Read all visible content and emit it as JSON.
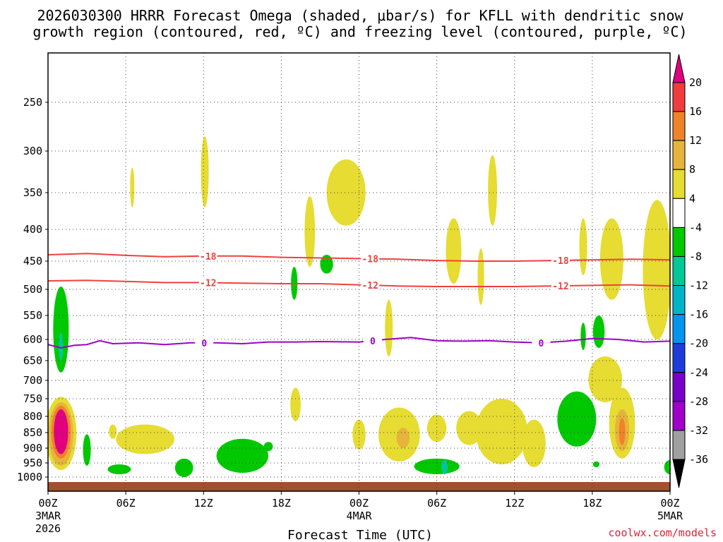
{
  "chart_data": {
    "type": "heatmap",
    "title_line1": "2026030300 HRRR Forecast Omega (shaded, μbar/s) for KFLL with dendritic snow",
    "title_line2": "growth region (contoured, red, ºC) and freezing level (contoured, purple, ºC)",
    "xlabel": "Forecast Time (UTC)",
    "credit": "coolwx.com/models",
    "x_range_hours": [
      0,
      48
    ],
    "x_ticks": [
      {
        "hour": 0,
        "label": "00Z",
        "sub1": "3MAR",
        "sub2": "2026"
      },
      {
        "hour": 6,
        "label": "06Z"
      },
      {
        "hour": 12,
        "label": "12Z"
      },
      {
        "hour": 18,
        "label": "18Z"
      },
      {
        "hour": 24,
        "label": "00Z",
        "sub1": "4MAR"
      },
      {
        "hour": 30,
        "label": "06Z"
      },
      {
        "hour": 36,
        "label": "12Z"
      },
      {
        "hour": 42,
        "label": "18Z"
      },
      {
        "hour": 48,
        "label": "00Z",
        "sub1": "5MAR"
      }
    ],
    "y_ticks_hpa": [
      250,
      300,
      350,
      400,
      450,
      500,
      550,
      600,
      650,
      700,
      750,
      800,
      850,
      900,
      950,
      1000
    ],
    "y_range_hpa": [
      1045,
      205
    ],
    "colorbar": {
      "labels": [
        "20",
        "16",
        "12",
        "8",
        "4",
        "-4",
        "-8",
        "-12",
        "-16",
        "-20",
        "-24",
        "-28",
        "-32",
        "-36"
      ],
      "colors": [
        "#e0007f",
        "#f03c3c",
        "#f08228",
        "#e6b43c",
        "#e6dc32",
        "#ffffff",
        "#00c800",
        "#00c896",
        "#00b4c8",
        "#0096f0",
        "#1e3cdc",
        "#7800c8",
        "#a000c8",
        "#a0a0a0",
        "#000000"
      ]
    },
    "contours": [
      {
        "name": "dgz-18",
        "label": "-18",
        "color": "#f04040",
        "points": [
          [
            0,
            440
          ],
          [
            3,
            438
          ],
          [
            6,
            441
          ],
          [
            9,
            443
          ],
          [
            12,
            442
          ],
          [
            15,
            442
          ],
          [
            18,
            444
          ],
          [
            21,
            445
          ],
          [
            24,
            446
          ],
          [
            27,
            447
          ],
          [
            30,
            449
          ],
          [
            33,
            450
          ],
          [
            36,
            450
          ],
          [
            39,
            449
          ],
          [
            42,
            448
          ],
          [
            45,
            447
          ],
          [
            48,
            448
          ]
        ],
        "label_hours": [
          12.3,
          24.8,
          39.5
        ]
      },
      {
        "name": "dgz-12",
        "label": "-12",
        "color": "#f04040",
        "points": [
          [
            0,
            485
          ],
          [
            3,
            484
          ],
          [
            6,
            486
          ],
          [
            9,
            488
          ],
          [
            12,
            488
          ],
          [
            15,
            489
          ],
          [
            18,
            490
          ],
          [
            21,
            490
          ],
          [
            24,
            492
          ],
          [
            27,
            494
          ],
          [
            30,
            495
          ],
          [
            33,
            495
          ],
          [
            36,
            495
          ],
          [
            39,
            494
          ],
          [
            42,
            493
          ],
          [
            45,
            492
          ],
          [
            48,
            494
          ]
        ],
        "label_hours": [
          12.3,
          24.8,
          39.5
        ]
      },
      {
        "name": "freezing",
        "label": "0",
        "color": "#a000c8",
        "points": [
          [
            0,
            612
          ],
          [
            1,
            620
          ],
          [
            2,
            614
          ],
          [
            3,
            612
          ],
          [
            4,
            603
          ],
          [
            5,
            610
          ],
          [
            7,
            608
          ],
          [
            9,
            612
          ],
          [
            11,
            608
          ],
          [
            13,
            608
          ],
          [
            15,
            610
          ],
          [
            17,
            606
          ],
          [
            19,
            606
          ],
          [
            21,
            605
          ],
          [
            24,
            606
          ],
          [
            26,
            600
          ],
          [
            28,
            596
          ],
          [
            30,
            603
          ],
          [
            32,
            604
          ],
          [
            34,
            603
          ],
          [
            36,
            606
          ],
          [
            38,
            608
          ],
          [
            40,
            604
          ],
          [
            42,
            598
          ],
          [
            44,
            600
          ],
          [
            46,
            606
          ],
          [
            48,
            604
          ]
        ],
        "label_hours": [
          12,
          25,
          38
        ]
      }
    ],
    "omega_regions": [
      {
        "level": "-4",
        "center": [
          1,
          575
        ],
        "span_hours": 1.2,
        "top_hpa": 495,
        "bottom_hpa": 680
      },
      {
        "level": "-8",
        "center": [
          1,
          615
        ],
        "span_hours": 0.3,
        "top_hpa": 585,
        "bottom_hpa": 650
      },
      {
        "level": "4",
        "center": [
          1,
          850
        ],
        "span_hours": 2.4,
        "top_hpa": 745,
        "bottom_hpa": 975
      },
      {
        "level": "8",
        "center": [
          1,
          850
        ],
        "span_hours": 1.9,
        "top_hpa": 760,
        "bottom_hpa": 960
      },
      {
        "level": "12",
        "center": [
          1,
          848
        ],
        "span_hours": 1.5,
        "top_hpa": 770,
        "bottom_hpa": 935
      },
      {
        "level": "20",
        "center": [
          1,
          845
        ],
        "span_hours": 1.1,
        "top_hpa": 780,
        "bottom_hpa": 920
      },
      {
        "level": "-4",
        "center": [
          3,
          905
        ],
        "span_hours": 0.6,
        "top_hpa": 855,
        "bottom_hpa": 960
      },
      {
        "level": "4",
        "center": [
          5,
          845
        ],
        "span_hours": 0.6,
        "top_hpa": 825,
        "bottom_hpa": 870
      },
      {
        "level": "-4",
        "center": [
          5.5,
          970
        ],
        "span_hours": 1.8,
        "top_hpa": 955,
        "bottom_hpa": 990
      },
      {
        "level": "4",
        "center": [
          6.5,
          345
        ],
        "span_hours": 0.3,
        "top_hpa": 320,
        "bottom_hpa": 370
      },
      {
        "level": "4",
        "center": [
          7.5,
          870
        ],
        "span_hours": 4.5,
        "top_hpa": 825,
        "bottom_hpa": 920
      },
      {
        "level": "-4",
        "center": [
          10.5,
          970
        ],
        "span_hours": 1.4,
        "top_hpa": 935,
        "bottom_hpa": 1000
      },
      {
        "level": "4",
        "center": [
          12.1,
          325
        ],
        "span_hours": 0.6,
        "top_hpa": 285,
        "bottom_hpa": 370
      },
      {
        "level": "-4",
        "center": [
          15,
          935
        ],
        "span_hours": 4,
        "top_hpa": 870,
        "bottom_hpa": 985
      },
      {
        "level": "-4",
        "center": [
          17,
          895
        ],
        "span_hours": 0.7,
        "top_hpa": 880,
        "bottom_hpa": 910
      },
      {
        "level": "4",
        "center": [
          19.1,
          770
        ],
        "span_hours": 0.8,
        "top_hpa": 720,
        "bottom_hpa": 815
      },
      {
        "level": "-4",
        "center": [
          19,
          485
        ],
        "span_hours": 0.5,
        "top_hpa": 460,
        "bottom_hpa": 520
      },
      {
        "level": "4",
        "center": [
          20.2,
          410
        ],
        "span_hours": 0.8,
        "top_hpa": 355,
        "bottom_hpa": 460
      },
      {
        "level": "-4",
        "center": [
          21.5,
          455
        ],
        "span_hours": 1,
        "top_hpa": 440,
        "bottom_hpa": 472
      },
      {
        "level": "4",
        "center": [
          24,
          858
        ],
        "span_hours": 1,
        "top_hpa": 810,
        "bottom_hpa": 905
      },
      {
        "level": "4",
        "center": [
          23,
          350
        ],
        "span_hours": 3,
        "top_hpa": 310,
        "bottom_hpa": 395
      },
      {
        "level": "4",
        "center": [
          26.3,
          580
        ],
        "span_hours": 0.6,
        "top_hpa": 520,
        "bottom_hpa": 640
      },
      {
        "level": "4",
        "center": [
          27.1,
          860
        ],
        "span_hours": 3.2,
        "top_hpa": 775,
        "bottom_hpa": 945
      },
      {
        "level": "8",
        "center": [
          27.4,
          865
        ],
        "span_hours": 1,
        "top_hpa": 835,
        "bottom_hpa": 900
      },
      {
        "level": "4",
        "center": [
          30,
          850
        ],
        "span_hours": 1.5,
        "top_hpa": 795,
        "bottom_hpa": 880
      },
      {
        "level": "-4",
        "center": [
          30,
          970
        ],
        "span_hours": 3.5,
        "top_hpa": 935,
        "bottom_hpa": 990
      },
      {
        "level": "-8",
        "center": [
          30.6,
          965
        ],
        "span_hours": 0.5,
        "top_hpa": 940,
        "bottom_hpa": 990
      },
      {
        "level": "4",
        "center": [
          32.5,
          825
        ],
        "span_hours": 2,
        "top_hpa": 785,
        "bottom_hpa": 890
      },
      {
        "level": "4",
        "center": [
          31.3,
          420
        ],
        "span_hours": 1.2,
        "top_hpa": 385,
        "bottom_hpa": 490
      },
      {
        "level": "4",
        "center": [
          33.4,
          475
        ],
        "span_hours": 0.5,
        "top_hpa": 430,
        "bottom_hpa": 530
      },
      {
        "level": "4",
        "center": [
          34.3,
          360
        ],
        "span_hours": 0.7,
        "top_hpa": 305,
        "bottom_hpa": 395
      },
      {
        "level": "4",
        "center": [
          35,
          850
        ],
        "span_hours": 4,
        "top_hpa": 750,
        "bottom_hpa": 955
      },
      {
        "level": "4",
        "center": [
          37.5,
          915
        ],
        "span_hours": 1.8,
        "top_hpa": 810,
        "bottom_hpa": 965
      },
      {
        "level": "-4",
        "center": [
          40.8,
          790
        ],
        "span_hours": 3,
        "top_hpa": 730,
        "bottom_hpa": 895
      },
      {
        "level": "4",
        "center": [
          41.3,
          440
        ],
        "span_hours": 0.6,
        "top_hpa": 385,
        "bottom_hpa": 475
      },
      {
        "level": "-4",
        "center": [
          41.3,
          600
        ],
        "span_hours": 0.4,
        "top_hpa": 565,
        "bottom_hpa": 625
      },
      {
        "level": "-4",
        "center": [
          42.5,
          580
        ],
        "span_hours": 0.9,
        "top_hpa": 550,
        "bottom_hpa": 620
      },
      {
        "level": "4",
        "center": [
          43.5,
          450
        ],
        "span_hours": 1.8,
        "top_hpa": 385,
        "bottom_hpa": 520
      },
      {
        "level": "4",
        "center": [
          43,
          700
        ],
        "span_hours": 2.6,
        "top_hpa": 640,
        "bottom_hpa": 760
      },
      {
        "level": "4",
        "center": [
          44.3,
          840
        ],
        "span_hours": 2,
        "top_hpa": 720,
        "bottom_hpa": 935
      },
      {
        "level": "8",
        "center": [
          44.3,
          845
        ],
        "span_hours": 1.1,
        "top_hpa": 780,
        "bottom_hpa": 910
      },
      {
        "level": "12",
        "center": [
          44.3,
          850
        ],
        "span_hours": 0.5,
        "top_hpa": 805,
        "bottom_hpa": 890
      },
      {
        "level": "-4",
        "center": [
          42.3,
          955
        ],
        "span_hours": 0.5,
        "top_hpa": 945,
        "bottom_hpa": 965
      },
      {
        "level": "4",
        "center": [
          47,
          480
        ],
        "span_hours": 2.2,
        "top_hpa": 360,
        "bottom_hpa": 600
      },
      {
        "level": "-4",
        "center": [
          48,
          965
        ],
        "span_hours": 0.9,
        "top_hpa": 940,
        "bottom_hpa": 990
      }
    ]
  }
}
